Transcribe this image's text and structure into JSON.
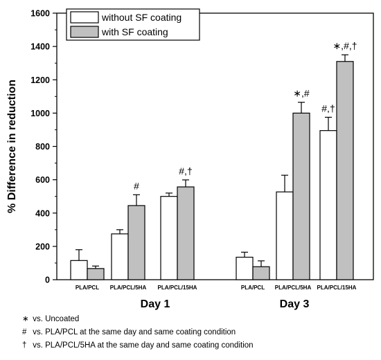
{
  "chart_data": {
    "type": "bar",
    "ylabel": "% Difference in reduction",
    "ylim": [
      0,
      1600
    ],
    "yticks": [
      0,
      200,
      400,
      600,
      800,
      1000,
      1200,
      1400,
      1600
    ],
    "error_bars": true,
    "legend_position": "top-left",
    "series": [
      {
        "name": "without SF coating",
        "color": "#ffffff"
      },
      {
        "name": "with SF coating",
        "color": "#c0c0c0"
      }
    ],
    "groups": [
      {
        "label": "Day 1",
        "categories": [
          {
            "label": "PLA/PCL",
            "values": [
              115,
              67
            ],
            "errors": [
              65,
              15
            ],
            "annotations": [
              "",
              ""
            ]
          },
          {
            "label": "PLA/PCL/5HA",
            "values": [
              275,
              445
            ],
            "errors": [
              25,
              65
            ],
            "annotations": [
              "",
              "#"
            ]
          },
          {
            "label": "PLA/PCL/15HA",
            "values": [
              500,
              557
            ],
            "errors": [
              20,
              42
            ],
            "annotations": [
              "",
              "#,†"
            ]
          }
        ]
      },
      {
        "label": "Day 3",
        "categories": [
          {
            "label": "PLA/PCL",
            "values": [
              135,
              78
            ],
            "errors": [
              30,
              35
            ],
            "annotations": [
              "",
              ""
            ]
          },
          {
            "label": "PLA/PCL/5HA",
            "values": [
              527,
              1000
            ],
            "errors": [
              100,
              65
            ],
            "annotations": [
              "",
              "∗,#"
            ]
          },
          {
            "label": "PLA/PCL/15HA",
            "values": [
              895,
              1310
            ],
            "errors": [
              80,
              40
            ],
            "annotations": [
              "#,†",
              "∗,#,†"
            ]
          }
        ]
      }
    ]
  },
  "notes": [
    {
      "symbol": "∗",
      "text": "vs. Uncoated"
    },
    {
      "symbol": "#",
      "text": "vs. PLA/PCL at the same day and same coating condition"
    },
    {
      "symbol": "†",
      "text": "vs. PLA/PCL/5HA at the same day and same coating condition"
    }
  ]
}
